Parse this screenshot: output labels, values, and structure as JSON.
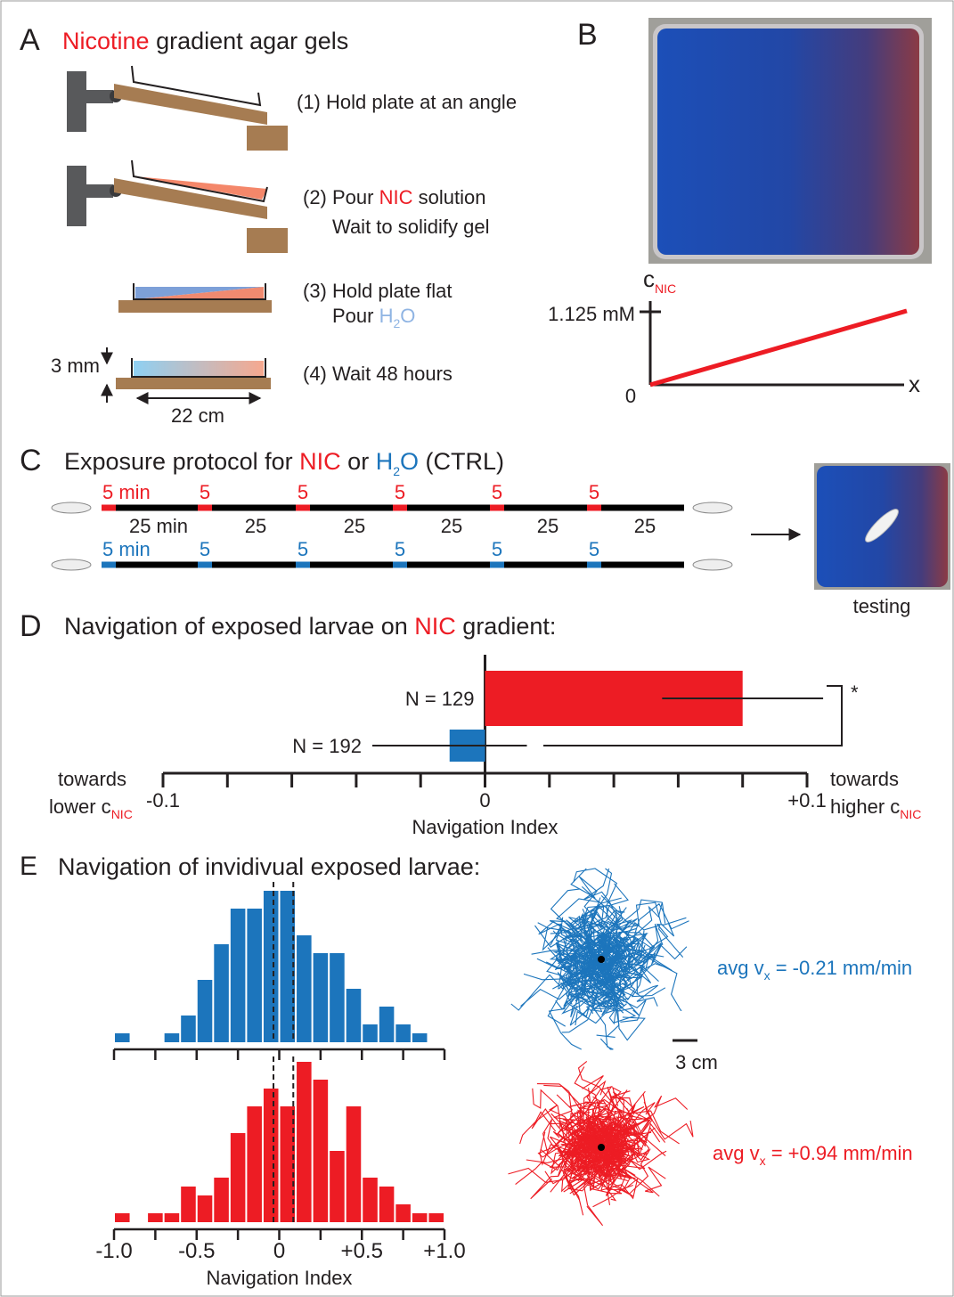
{
  "panel_a": {
    "label": "A",
    "title": [
      "Nicotine",
      "gradient agar gels"
    ],
    "step1": "(1) Hold plate at an angle",
    "step2": [
      "(2) Pour",
      "NIC",
      "solution"
    ],
    "step2b": "Wait to solidify gel",
    "step3": "(3) Hold plate flat",
    "step3b": [
      "Pour",
      "H",
      "2",
      "O"
    ],
    "step4": "(4) Wait 48 hours",
    "thickness": "3 mm",
    "width": "22 cm"
  },
  "panel_b": {
    "label": "B",
    "y_label": "c",
    "y_label_sub": "NIC",
    "y_tick": "1.125 mM",
    "origin": "0",
    "x_label": "x"
  },
  "panel_c": {
    "label": "C",
    "title": [
      "Exposure protocol for",
      "NIC",
      "or",
      "H",
      "2",
      "O",
      "(CTRL)"
    ],
    "nic_labels": [
      "5 min",
      "5",
      "5",
      "5",
      "5",
      "5"
    ],
    "interval_labels": [
      "25 min",
      "25",
      "25",
      "25",
      "25",
      "25"
    ],
    "ctrl_labels": [
      "5 min",
      "5",
      "5",
      "5",
      "5",
      "5"
    ],
    "testing": "testing"
  },
  "panel_d": {
    "label": "D",
    "title": [
      "Navigation of exposed larvae on",
      "NIC",
      "gradient:"
    ],
    "left_label": [
      "towards",
      "lower c",
      "NIC"
    ],
    "right_label": [
      "towards",
      "higher c",
      "NIC"
    ],
    "chart": {
      "type": "bar",
      "orientation": "horizontal",
      "values": [
        0.08,
        -0.011
      ],
      "errors": [
        0.025,
        0.024
      ],
      "colors": [
        "#ed1c24",
        "#1c75bc"
      ],
      "annotations": [
        "N = 129",
        "N = 192"
      ],
      "xlim": [
        -0.1,
        0.1
      ],
      "xticks": [
        -0.1,
        0,
        {
          "value": 0.1,
          "label": "+0.1"
        }
      ],
      "xminor": [
        -0.08,
        -0.06,
        -0.04,
        -0.02,
        0.02,
        0.04,
        0.06,
        0.08
      ],
      "xlabel": "Navigation Index",
      "significance": "*"
    }
  },
  "panel_e": {
    "label": "E",
    "title": "Navigation of invidivual exposed larvae:",
    "histograms": [
      {
        "type": "histogram",
        "color": "#1c75bc",
        "bins": [
          -1.0,
          -0.9,
          -0.8,
          -0.7,
          -0.6,
          -0.5,
          -0.4,
          -0.3,
          -0.2,
          -0.1,
          0,
          0.1,
          0.2,
          0.3,
          0.4,
          0.5,
          0.6,
          0.7,
          0.8,
          0.9,
          1.0
        ],
        "values": [
          1,
          0,
          0,
          1,
          3,
          7,
          11,
          15,
          15,
          17,
          17,
          12,
          10,
          10,
          6,
          2,
          4,
          2,
          1,
          0
        ]
      },
      {
        "type": "histogram",
        "color": "#ed1c24",
        "bins": [
          -1.0,
          -0.9,
          -0.8,
          -0.7,
          -0.6,
          -0.5,
          -0.4,
          -0.3,
          -0.2,
          -0.1,
          0,
          0.1,
          0.2,
          0.3,
          0.4,
          0.5,
          0.6,
          0.7,
          0.8,
          0.9,
          1.0
        ],
        "values": [
          1,
          0,
          1,
          1,
          4,
          3,
          5,
          10,
          13,
          15,
          13,
          18,
          16,
          8,
          13,
          5,
          4,
          2,
          1,
          1
        ]
      }
    ],
    "xlim": [
      -1.0,
      1.0
    ],
    "xticks": [
      {
        "value": -1.0,
        "label": "-1.0"
      },
      -0.5,
      0,
      {
        "value": 0.5,
        "label": "+0.5"
      },
      {
        "value": 1.0,
        "label": "+1.0"
      }
    ],
    "xminor": [
      -0.75,
      -0.25,
      0.25,
      0.75
    ],
    "xlabel": "Navigation Index",
    "dashed_lines": [
      -0.035,
      0.085
    ],
    "trajectories": [
      {
        "label": [
          "avg v",
          "x",
          "= -0.21 mm/min"
        ],
        "color": "#1c75bc"
      },
      {
        "label": [
          "avg v",
          "x",
          "= +0.94 mm/min"
        ],
        "color": "#ed1c24"
      }
    ],
    "scale_bar": "3 cm"
  }
}
